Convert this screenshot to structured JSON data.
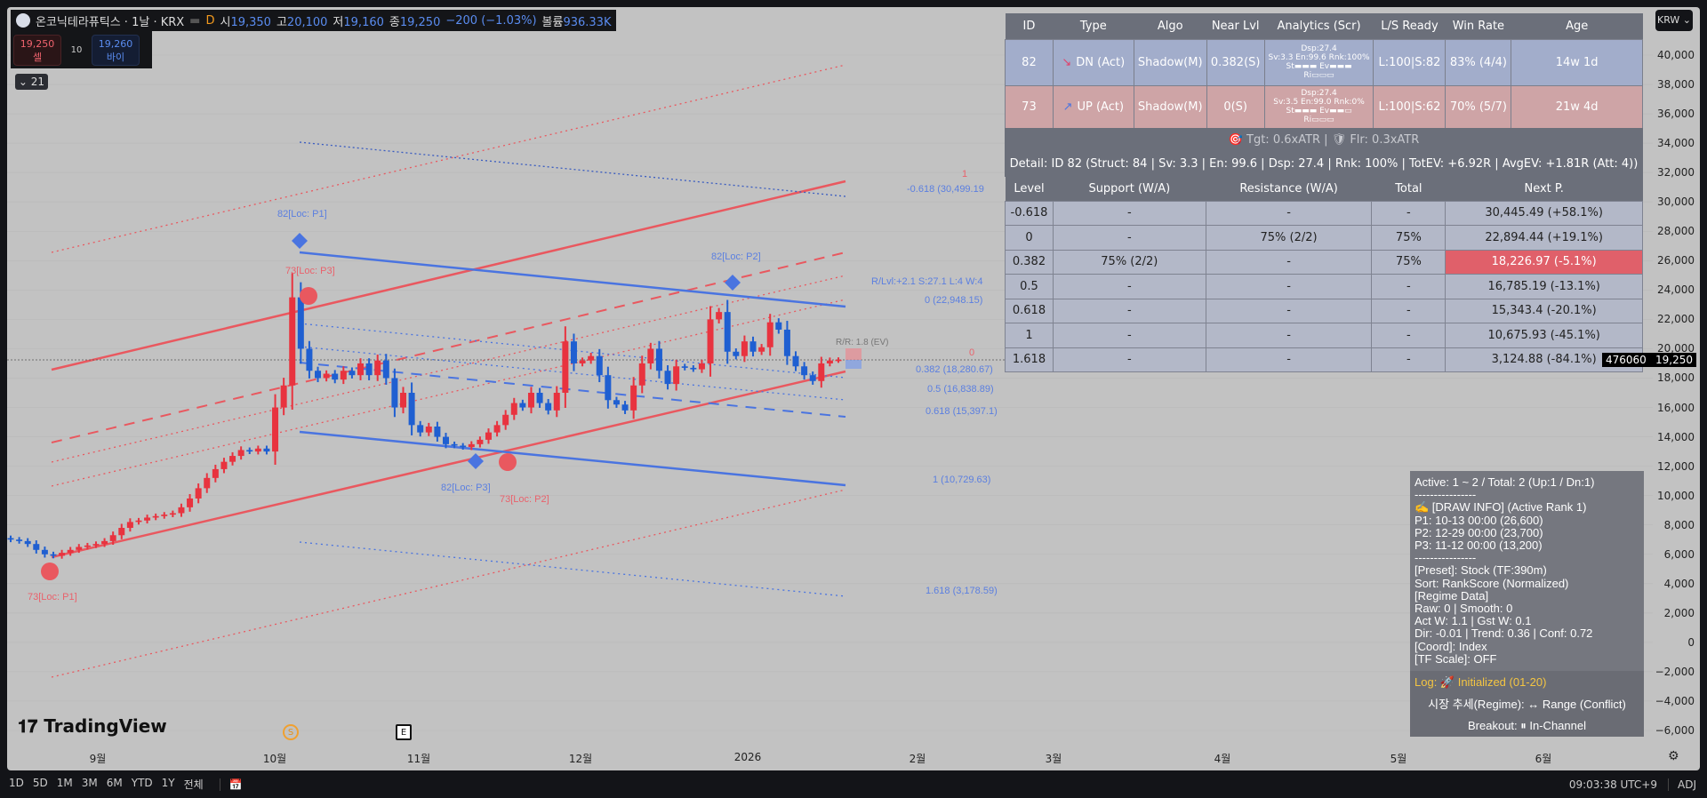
{
  "legend": {
    "title": "온코닉테라퓨틱스 · 1날 · KRX",
    "interval": "D",
    "open_label": "시",
    "open": "19,350",
    "high_label": "고",
    "high": "20,100",
    "low_label": "저",
    "low": "19,160",
    "close_label": "종",
    "close": "19,250",
    "change": "−200 (−1.03%)",
    "vol_label": "볼륨",
    "volume": "936.33K"
  },
  "trade": {
    "sell_price": "19,250",
    "sell_label": "셀",
    "qty": "10",
    "buy_price": "19,260",
    "buy_label": "바이"
  },
  "collapse": {
    "label": "⌄ 21"
  },
  "signals": {
    "headers": [
      "ID",
      "Type",
      "Algo",
      "Near Lvl",
      "Analytics (Scr)",
      "L/S Ready",
      "Win Rate",
      "Age"
    ],
    "rows": [
      {
        "id": "82",
        "type": "DN (Act)",
        "algo": "Shadow(M)",
        "near": "0.382(S)",
        "a1": "Dsp:27.4",
        "a2": "Sv:3.3 En:99.6 Rnk:100%",
        "a3": "St▬▬▬ Ev▬▬▬",
        "a4": "Ri▭▭▭",
        "ls": "L:100|S:82",
        "win": "83% (4/4)",
        "age": "14w 1d"
      },
      {
        "id": "73",
        "type": "UP (Act)",
        "algo": "Shadow(M)",
        "near": "0(S)",
        "a1": "Dsp:27.4",
        "a2": "Sv:3.5 En:99.0 Rnk:0%",
        "a3": "St▬▬▬ Ev▬▬▭",
        "a4": "Ri▭▭▭",
        "ls": "L:100|S:62",
        "win": "70% (5/7)",
        "age": "21w 4d"
      }
    ],
    "tgt": "🎯 Tgt: 0.6xATR | 🛡 Flr: 0.3xATR",
    "detail": "Detail: ID 82 (Struct: 84 | Sv: 3.3 | En: 99.6 | Dsp: 27.4 | Rnk: 100% | TotEV: +6.92R | AvgEV: +1.81R (Att: 4))"
  },
  "levels": {
    "headers": [
      "Level",
      "Support (W/A)",
      "Resistance (W/A)",
      "Total",
      "Next P."
    ],
    "rows": [
      [
        "-0.618",
        "-",
        "-",
        "-",
        "30,445.49 (+58.1%)"
      ],
      [
        "0",
        "-",
        "75% (2/2)",
        "75%",
        "22,894.44 (+19.1%)"
      ],
      [
        "0.382",
        "75% (2/2)",
        "-",
        "75%",
        "18,226.97 (-5.1%)"
      ],
      [
        "0.5",
        "-",
        "-",
        "-",
        "16,785.19 (-13.1%)"
      ],
      [
        "0.618",
        "-",
        "-",
        "-",
        "15,343.4 (-20.1%)"
      ],
      [
        "1",
        "-",
        "-",
        "-",
        "10,675.93 (-45.1%)"
      ],
      [
        "1.618",
        "-",
        "-",
        "-",
        "3,124.88 (-84.1%)"
      ]
    ],
    "highlight_row": 2
  },
  "info": {
    "body": "Active: 1 ~ 2 / Total: 2 (Up:1 / Dn:1)\n----------------\n✍ [DRAW INFO] (Active Rank 1)\nP1: 10-13 00:00 (26,600)\nP2: 12-29 00:00 (23,700)\nP3: 11-12 00:00 (13,200)\n----------------\n[Preset]: Stock (TF:390m)\nSort: RankScore (Normalized)\n[Regime Data]\nRaw: 0 | Smooth: 0\nAct W: 1.1 | Gst W: 0.1\nDir: -0.01 | Trend: 0.36 | Conf: 0.72\n[Coord]: Index\n[TF Scale]: OFF",
    "log": "Log: 🚀 Initialized (01-20)",
    "regime": "시장 추세(Regime): ↔ Range (Conflict)",
    "breakout": "Breakout: ⏸ In-Channel"
  },
  "fib_labels": {
    "top_one": "1",
    "m618": "-0.618 (30,499.19",
    "rlvl": "R/Lvl:+2.1 S:27.1 L:4 W:4",
    "zero": "0 (22,948.15)",
    "zero_red": "0",
    "l382": "0.382 (18,280.67)",
    "l5": "0.5 (16,838.89)",
    "l618": "0.618 (15,397.1)",
    "l1": "1 (10,729.63)",
    "l1618": "1.618 (3,178.59)",
    "rr": "R/R: 1.8 (EV)"
  },
  "markers": {
    "p1_82": "82[Loc: P1]",
    "p2_82": "82[Loc: P2]",
    "p3_82": "82[Loc: P3]",
    "p1_73": "73[Loc: P1]",
    "p2_73": "73[Loc: P2]",
    "p3_73": "73[Loc: P3]"
  },
  "axis": {
    "currency": "KRW ⌄",
    "ticks": [
      "40,000",
      "38,000",
      "36,000",
      "34,000",
      "32,000",
      "30,000",
      "28,000",
      "26,000",
      "24,000",
      "22,000",
      "20,000",
      "18,000",
      "16,000",
      "14,000",
      "12,000",
      "10,000",
      "8,000",
      "6,000",
      "4,000",
      "2,000",
      "0",
      "−2,000",
      "−4,000",
      "−6,000"
    ],
    "last_price": "19,250",
    "crosshair_value": "476060"
  },
  "time_axis": [
    "9월",
    "10월",
    "11월",
    "12월",
    "2026",
    "2월",
    "3월",
    "4월",
    "5월",
    "6월"
  ],
  "events": {
    "split": "S",
    "earnings": "E"
  },
  "watermark": "TradingView",
  "bottom": {
    "ranges": [
      "1D",
      "5D",
      "1M",
      "3M",
      "6M",
      "YTD",
      "1Y",
      "전체"
    ],
    "clock": "09:03:38 UTC+9",
    "adj": "ADJ"
  },
  "colors": {
    "up": "#e8333f",
    "down": "#1f5fd1",
    "channel_red": "#e9585f",
    "channel_blue": "#4a74e0"
  },
  "chart_data": {
    "type": "candlestick",
    "price_range": [
      -6000,
      40000
    ],
    "last": 19250,
    "closes": [
      7000,
      6900,
      6700,
      6300,
      6000,
      5900,
      6100,
      6300,
      6500,
      6600,
      6700,
      6900,
      7300,
      7800,
      8200,
      8300,
      8500,
      8600,
      8700,
      8800,
      9200,
      9800,
      10500,
      11200,
      11800,
      12300,
      12700,
      13100,
      13000,
      13200,
      13000,
      16000,
      17500,
      23500,
      20000,
      18500,
      18000,
      18300,
      17900,
      18500,
      18200,
      19000,
      18200,
      19200,
      18000,
      16000,
      17000,
      14800,
      14300,
      14700,
      14000,
      13500,
      13400,
      13300,
      13500,
      13800,
      14300,
      14800,
      15500,
      16300,
      16000,
      17000,
      16300,
      15800,
      17000,
      20500,
      19000,
      19200,
      19500,
      18200,
      16500,
      16200,
      15800,
      17500,
      19000,
      20000,
      18500,
      17600,
      18800,
      18700,
      18600,
      19000,
      22000,
      22500,
      19800,
      19500,
      20500,
      19800,
      20100,
      21800,
      21300,
      19500,
      18800,
      18200,
      17800,
      19000,
      19200,
      19250
    ]
  }
}
